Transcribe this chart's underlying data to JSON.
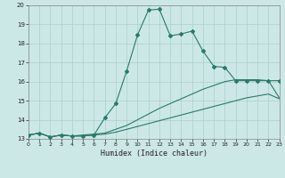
{
  "xlabel": "Humidex (Indice chaleur)",
  "bg_color": "#cce8e6",
  "grid_color": "#aacfcc",
  "line_color": "#2a7a6a",
  "xlim": [
    0,
    23
  ],
  "ylim": [
    13,
    20
  ],
  "xticks": [
    0,
    1,
    2,
    3,
    4,
    5,
    6,
    7,
    8,
    9,
    10,
    11,
    12,
    13,
    14,
    15,
    16,
    17,
    18,
    19,
    20,
    21,
    22,
    23
  ],
  "yticks": [
    13,
    14,
    15,
    16,
    17,
    18,
    19,
    20
  ],
  "s1_x": [
    0,
    1,
    2,
    3,
    4,
    5,
    6,
    7,
    8,
    9,
    10,
    11,
    12,
    13,
    14,
    15,
    16,
    17,
    18,
    19,
    20,
    21,
    22,
    23
  ],
  "s1_y": [
    13.2,
    13.3,
    13.1,
    13.2,
    13.15,
    13.15,
    13.2,
    14.1,
    14.85,
    16.55,
    18.45,
    19.75,
    19.8,
    18.4,
    18.5,
    18.65,
    17.6,
    16.8,
    16.75,
    16.05,
    16.05,
    16.05,
    16.05,
    16.05
  ],
  "s2_x": [
    0,
    1,
    2,
    3,
    4,
    5,
    6,
    7,
    8,
    9,
    10,
    11,
    12,
    13,
    14,
    15,
    16,
    17,
    18,
    19,
    20,
    21,
    22,
    23
  ],
  "s2_y": [
    13.2,
    13.3,
    13.1,
    13.2,
    13.15,
    13.2,
    13.25,
    13.3,
    13.5,
    13.7,
    14.0,
    14.3,
    14.6,
    14.85,
    15.1,
    15.35,
    15.6,
    15.8,
    16.0,
    16.1,
    16.1,
    16.1,
    16.05,
    15.15
  ],
  "s3_x": [
    0,
    1,
    2,
    3,
    4,
    5,
    6,
    7,
    8,
    9,
    10,
    11,
    12,
    13,
    14,
    15,
    16,
    17,
    18,
    19,
    20,
    21,
    22,
    23
  ],
  "s3_y": [
    13.2,
    13.3,
    13.1,
    13.2,
    13.15,
    13.15,
    13.2,
    13.25,
    13.35,
    13.5,
    13.65,
    13.8,
    13.95,
    14.1,
    14.25,
    14.4,
    14.55,
    14.7,
    14.85,
    15.0,
    15.15,
    15.25,
    15.35,
    15.1
  ]
}
